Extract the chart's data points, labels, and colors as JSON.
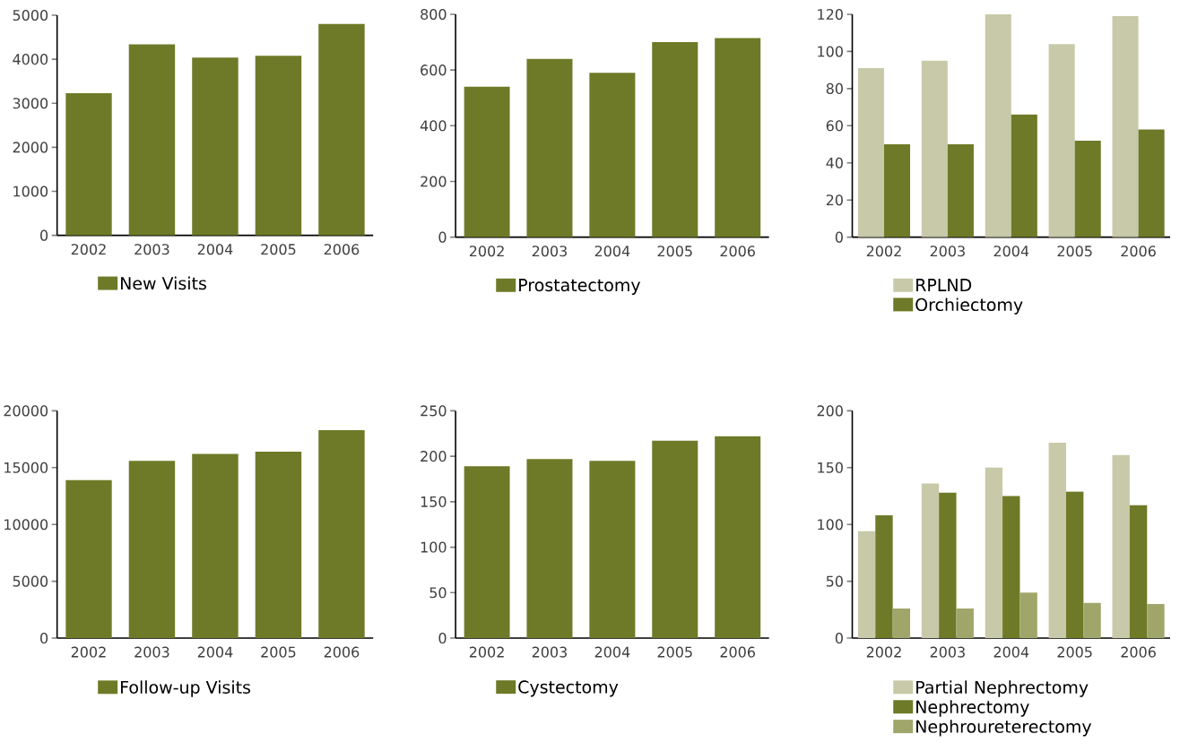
{
  "chart_data": [
    {
      "type": "bar",
      "categories": [
        "2002",
        "2003",
        "2004",
        "2005",
        "2006"
      ],
      "series": [
        {
          "name": "New Visits",
          "color": "#6e7a27",
          "values": [
            3230,
            4340,
            4040,
            4080,
            4800
          ]
        }
      ],
      "ylim": [
        0,
        5000
      ],
      "yticks": [
        0,
        1000,
        2000,
        3000,
        4000,
        5000
      ],
      "legend": "bottom"
    },
    {
      "type": "bar",
      "categories": [
        "2002",
        "2003",
        "2004",
        "2005",
        "2006"
      ],
      "series": [
        {
          "name": "Prostatectomy",
          "color": "#6e7a27",
          "values": [
            540,
            640,
            590,
            700,
            715
          ]
        }
      ],
      "ylim": [
        0,
        800
      ],
      "yticks": [
        0,
        200,
        400,
        600,
        800
      ],
      "legend": "bottom"
    },
    {
      "type": "bar",
      "categories": [
        "2002",
        "2003",
        "2004",
        "2005",
        "2006"
      ],
      "series": [
        {
          "name": "RPLND",
          "color": "#c8c9a8",
          "values": [
            91,
            95,
            120,
            104,
            119
          ]
        },
        {
          "name": "Orchiectomy",
          "color": "#6e7a27",
          "values": [
            50,
            50,
            66,
            52,
            58
          ]
        }
      ],
      "ylim": [
        0,
        120
      ],
      "yticks": [
        0,
        20,
        40,
        60,
        80,
        100,
        120
      ],
      "legend": "bottom"
    },
    {
      "type": "bar",
      "categories": [
        "2002",
        "2003",
        "2004",
        "2005",
        "2006"
      ],
      "series": [
        {
          "name": "Follow-up Visits",
          "color": "#6e7a27",
          "values": [
            13900,
            15600,
            16200,
            16400,
            18300
          ]
        }
      ],
      "ylim": [
        0,
        20000
      ],
      "yticks": [
        0,
        5000,
        10000,
        15000,
        20000
      ],
      "legend": "bottom"
    },
    {
      "type": "bar",
      "categories": [
        "2002",
        "2003",
        "2004",
        "2005",
        "2006"
      ],
      "series": [
        {
          "name": "Cystectomy",
          "color": "#6e7a27",
          "values": [
            189,
            197,
            195,
            217,
            222
          ]
        }
      ],
      "ylim": [
        0,
        250
      ],
      "yticks": [
        0,
        50,
        100,
        150,
        200,
        250
      ],
      "legend": "bottom"
    },
    {
      "type": "bar",
      "categories": [
        "2002",
        "2003",
        "2004",
        "2005",
        "2006"
      ],
      "series": [
        {
          "name": "Partial Nephrectomy",
          "color": "#c8c9a8",
          "values": [
            94,
            136,
            150,
            172,
            161
          ]
        },
        {
          "name": "Nephrectomy",
          "color": "#6e7a27",
          "values": [
            108,
            128,
            125,
            129,
            117
          ]
        },
        {
          "name": "Nephroureterectomy",
          "color": "#a0a66a",
          "values": [
            26,
            26,
            40,
            31,
            30
          ]
        }
      ],
      "ylim": [
        0,
        200
      ],
      "yticks": [
        0,
        50,
        100,
        150,
        200
      ],
      "legend": "bottom"
    }
  ]
}
